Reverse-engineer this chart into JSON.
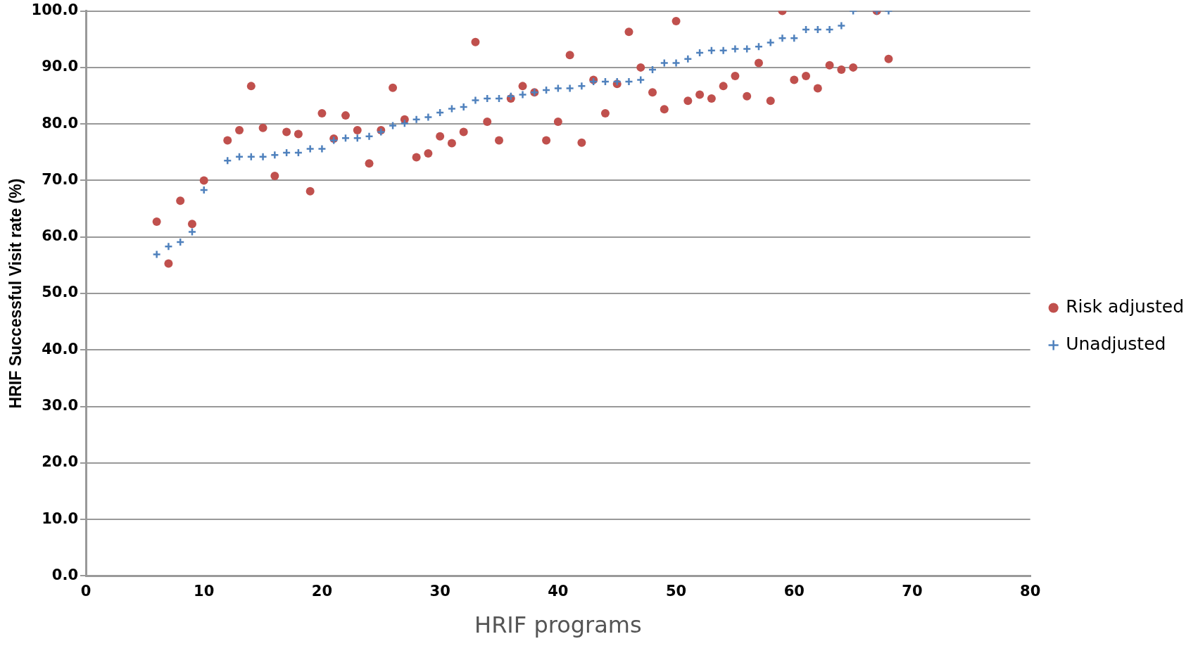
{
  "chart_data": {
    "type": "scatter",
    "xlabel": "HRIF programs",
    "ylabel": "HRIF Successful Visit rate (%)",
    "xlim": [
      0,
      80
    ],
    "xticks": [
      0,
      10,
      20,
      30,
      40,
      50,
      60,
      70,
      80
    ],
    "ylim": [
      0,
      100
    ],
    "yticks": [
      {
        "value": 0,
        "label": "0.0"
      },
      {
        "value": 10,
        "label": "10.0"
      },
      {
        "value": 20,
        "label": "20.0"
      },
      {
        "value": 30,
        "label": "30.0"
      },
      {
        "value": 40,
        "label": "40.0"
      },
      {
        "value": 50,
        "label": "50.0"
      },
      {
        "value": 60,
        "label": "60.0"
      },
      {
        "value": 70,
        "label": "70.0"
      },
      {
        "value": 80,
        "label": "80.0"
      },
      {
        "value": 90,
        "label": "90.0"
      },
      {
        "value": 100,
        "label": "100.0"
      }
    ],
    "grid": "y",
    "legend": "right",
    "series": [
      {
        "name": "Risk adjusted",
        "color": "#c0504d",
        "marker": "circle",
        "x": [
          6,
          7,
          8,
          9,
          10,
          12,
          13,
          14,
          15,
          16,
          17,
          18,
          19,
          20,
          21,
          22,
          23,
          24,
          25,
          26,
          27,
          28,
          29,
          30,
          31,
          32,
          33,
          34,
          35,
          36,
          37,
          38,
          39,
          40,
          41,
          42,
          43,
          44,
          45,
          46,
          47,
          48,
          49,
          50,
          51,
          52,
          53,
          54,
          55,
          56,
          57,
          58,
          59,
          60,
          61,
          62,
          63,
          64,
          65,
          67,
          68
        ],
        "values": [
          62.7,
          55.3,
          66.4,
          62.3,
          70.0,
          77.1,
          78.9,
          86.7,
          79.3,
          70.8,
          78.6,
          78.2,
          68.1,
          81.9,
          77.4,
          81.5,
          78.9,
          73.0,
          78.9,
          86.4,
          80.8,
          74.1,
          74.8,
          77.8,
          76.6,
          78.6,
          94.5,
          80.4,
          77.1,
          84.5,
          86.7,
          85.6,
          77.1,
          80.4,
          92.2,
          76.7,
          87.8,
          81.9,
          87.1,
          96.3,
          90.0,
          85.6,
          82.6,
          98.2,
          84.1,
          85.2,
          84.5,
          86.7,
          88.5,
          84.9,
          90.8,
          84.1,
          100.0,
          87.8,
          88.5,
          86.3,
          90.4,
          89.6,
          90.0,
          100.0,
          91.5
        ]
      },
      {
        "name": "Unadjusted",
        "color": "#4f81bd",
        "marker": "cross",
        "x": [
          6,
          7,
          8,
          9,
          10,
          12,
          13,
          14,
          15,
          16,
          17,
          18,
          19,
          20,
          21,
          22,
          23,
          24,
          25,
          26,
          27,
          28,
          29,
          30,
          31,
          32,
          33,
          34,
          35,
          36,
          37,
          38,
          39,
          40,
          41,
          42,
          43,
          44,
          45,
          46,
          47,
          48,
          49,
          50,
          51,
          52,
          53,
          54,
          55,
          56,
          57,
          58,
          59,
          60,
          61,
          62,
          63,
          64,
          65,
          67,
          68
        ],
        "values": [
          56.9,
          58.3,
          59.1,
          60.9,
          68.3,
          73.5,
          74.2,
          74.2,
          74.2,
          74.5,
          74.9,
          74.9,
          75.6,
          75.6,
          77.1,
          77.5,
          77.5,
          77.8,
          78.6,
          79.7,
          80.1,
          80.8,
          81.2,
          82.0,
          82.7,
          83.0,
          84.2,
          84.5,
          84.5,
          84.9,
          85.2,
          85.6,
          86.0,
          86.3,
          86.3,
          86.7,
          87.5,
          87.5,
          87.5,
          87.5,
          87.8,
          89.6,
          90.8,
          90.8,
          91.5,
          92.6,
          93.0,
          93.0,
          93.3,
          93.3,
          93.7,
          94.4,
          95.2,
          95.2,
          96.7,
          96.7,
          96.7,
          97.4,
          100.0,
          100.0,
          100.0
        ]
      }
    ]
  }
}
